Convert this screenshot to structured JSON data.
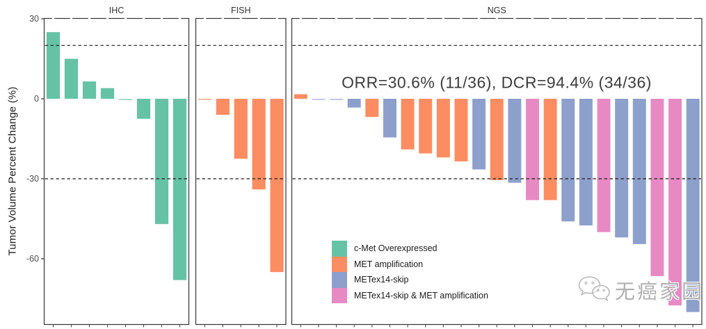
{
  "chart_data": {
    "type": "bar",
    "title": "",
    "ylabel": "Tumor Volume Percent Change (%)",
    "ylim": [
      30.5,
      -85
    ],
    "yticks": [
      30,
      0,
      -30,
      -60
    ],
    "reference_lines": [
      20,
      -30
    ],
    "grid": "off",
    "legend_position": "inside-bottom-left-of-NGS-panel",
    "annotation": "ORR=30.6% (11/36), DCR=94.4% (34/36)",
    "groups": {
      "overexpressed": {
        "label": "c-Met Overexpressed",
        "color": "#66C2A5"
      },
      "amplification": {
        "label": "MET amplification",
        "color": "#FC8D62"
      },
      "skip": {
        "label": "METex14-skip",
        "color": "#8DA0CB"
      },
      "skip_amp": {
        "label": "METex14-skip & MET amplification",
        "color": "#E78AC3"
      }
    },
    "legend_order": [
      "overexpressed",
      "amplification",
      "skip",
      "skip_amp"
    ],
    "panels": [
      {
        "label": "IHC",
        "bars": [
          {
            "value": 25,
            "group": "overexpressed"
          },
          {
            "value": 15,
            "group": "overexpressed"
          },
          {
            "value": 6.5,
            "group": "overexpressed"
          },
          {
            "value": 4,
            "group": "overexpressed"
          },
          {
            "value": -0.5,
            "group": "overexpressed"
          },
          {
            "value": -7.5,
            "group": "overexpressed"
          },
          {
            "value": -47,
            "group": "overexpressed"
          },
          {
            "value": -68,
            "group": "overexpressed"
          }
        ]
      },
      {
        "label": "FISH",
        "bars": [
          {
            "value": -0.5,
            "group": "amplification"
          },
          {
            "value": -6,
            "group": "amplification"
          },
          {
            "value": -22.5,
            "group": "amplification"
          },
          {
            "value": -34,
            "group": "amplification"
          },
          {
            "value": -65,
            "group": "amplification"
          }
        ]
      },
      {
        "label": "NGS",
        "bars": [
          {
            "value": 1.7,
            "group": "amplification"
          },
          {
            "value": -0.4,
            "group": "skip"
          },
          {
            "value": -0.5,
            "group": "skip"
          },
          {
            "value": -3.3,
            "group": "skip"
          },
          {
            "value": -6.8,
            "group": "amplification"
          },
          {
            "value": -14.5,
            "group": "skip"
          },
          {
            "value": -19,
            "group": "amplification"
          },
          {
            "value": -20.5,
            "group": "amplification"
          },
          {
            "value": -22,
            "group": "amplification"
          },
          {
            "value": -23.5,
            "group": "amplification"
          },
          {
            "value": -26.5,
            "group": "skip"
          },
          {
            "value": -30.5,
            "group": "amplification"
          },
          {
            "value": -31.5,
            "group": "skip"
          },
          {
            "value": -38,
            "group": "skip_amp"
          },
          {
            "value": -38,
            "group": "amplification"
          },
          {
            "value": -46,
            "group": "skip"
          },
          {
            "value": -47.5,
            "group": "skip"
          },
          {
            "value": -50,
            "group": "skip_amp"
          },
          {
            "value": -52,
            "group": "skip"
          },
          {
            "value": -54.5,
            "group": "skip"
          },
          {
            "value": -66.5,
            "group": "skip_amp"
          },
          {
            "value": -77.5,
            "group": "skip_amp"
          },
          {
            "value": -80,
            "group": "skip"
          }
        ]
      }
    ]
  },
  "watermark": {
    "icon": "wechat-icon",
    "text": "无癌家园"
  }
}
